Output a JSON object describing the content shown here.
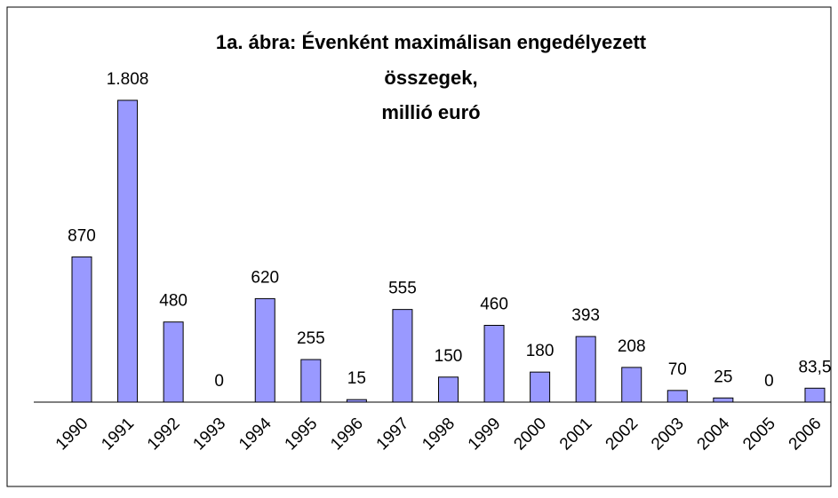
{
  "chart_data": {
    "type": "bar",
    "title": [
      "1a. ábra: Évenként maximálisan engedélyezett",
      "összegek,",
      "millió euró"
    ],
    "categories": [
      "1990",
      "1991",
      "1992",
      "1993",
      "1994",
      "1995",
      "1996",
      "1997",
      "1998",
      "1999",
      "2000",
      "2001",
      "2002",
      "2003",
      "2004",
      "2005",
      "2006"
    ],
    "values": [
      870,
      1808,
      480,
      0,
      620,
      255,
      15,
      555,
      150,
      460,
      180,
      393,
      208,
      70,
      25,
      0,
      83.5
    ],
    "value_labels": [
      "870",
      "1.808",
      "480",
      "0",
      "620",
      "255",
      "15",
      "555",
      "150",
      "460",
      "180",
      "393",
      "208",
      "70",
      "25",
      "0",
      "83,5"
    ],
    "color": "#9999ff"
  }
}
